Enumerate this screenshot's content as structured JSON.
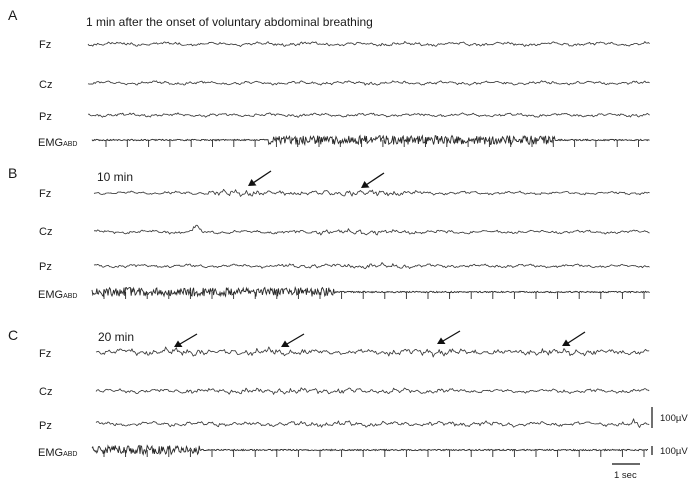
{
  "panels": [
    {
      "id": "A",
      "letter": "A",
      "title": "1 min after the onset of voluntary abdominal breathing",
      "channels": [
        {
          "label": "Fz",
          "type": "eeg"
        },
        {
          "label": "Cz",
          "type": "eeg"
        },
        {
          "label": "Pz",
          "type": "eeg"
        },
        {
          "label": "EMG",
          "sub": "ABD",
          "type": "emg"
        }
      ],
      "arrows": 0
    },
    {
      "id": "B",
      "letter": "B",
      "title": "10 min",
      "channels": [
        {
          "label": "Fz",
          "type": "eeg"
        },
        {
          "label": "Cz",
          "type": "eeg"
        },
        {
          "label": "Pz",
          "type": "eeg"
        },
        {
          "label": "EMG",
          "sub": "ABD",
          "type": "emg"
        }
      ],
      "arrows": 2
    },
    {
      "id": "C",
      "letter": "C",
      "title": "20 min",
      "channels": [
        {
          "label": "Fz",
          "type": "eeg"
        },
        {
          "label": "Cz",
          "type": "eeg"
        },
        {
          "label": "Pz",
          "type": "eeg"
        },
        {
          "label": "EMG",
          "sub": "ABD",
          "type": "emg"
        }
      ],
      "arrows": 4
    }
  ],
  "scale_bars": {
    "eeg_amplitude": "100µV",
    "emg_amplitude": "100µV",
    "time": "1 sec"
  }
}
